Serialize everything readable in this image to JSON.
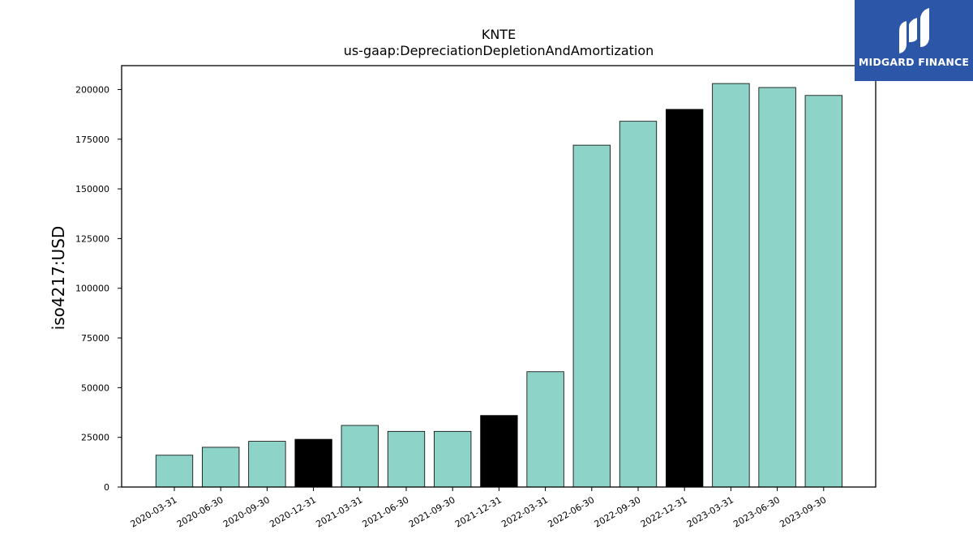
{
  "chart_data": {
    "type": "bar",
    "title": "KNTE",
    "subtitle": "us-gaap:DepreciationDepletionAndAmortization",
    "xlabel": "",
    "ylabel": "iso4217:USD",
    "ylim": [
      0,
      212000
    ],
    "yticks": [
      0,
      25000,
      50000,
      75000,
      100000,
      125000,
      150000,
      175000,
      200000
    ],
    "categories": [
      "2020-03-31",
      "2020-06-30",
      "2020-09-30",
      "2020-12-31",
      "2021-03-31",
      "2021-06-30",
      "2021-09-30",
      "2021-12-31",
      "2022-03-31",
      "2022-06-30",
      "2022-09-30",
      "2022-12-31",
      "2023-03-31",
      "2023-06-30",
      "2023-09-30"
    ],
    "values": [
      16000,
      20000,
      23000,
      24000,
      31000,
      28000,
      28000,
      36000,
      58000,
      172000,
      184000,
      190000,
      203000,
      201000,
      197000
    ],
    "bar_colors": [
      "#8dd3c7",
      "#8dd3c7",
      "#8dd3c7",
      "#000000",
      "#8dd3c7",
      "#8dd3c7",
      "#8dd3c7",
      "#000000",
      "#8dd3c7",
      "#8dd3c7",
      "#8dd3c7",
      "#000000",
      "#8dd3c7",
      "#8dd3c7",
      "#8dd3c7"
    ],
    "grid": false,
    "legend": "none"
  },
  "logo": {
    "text": "MIDGARD FINANCE",
    "background": "#2c56a8"
  }
}
